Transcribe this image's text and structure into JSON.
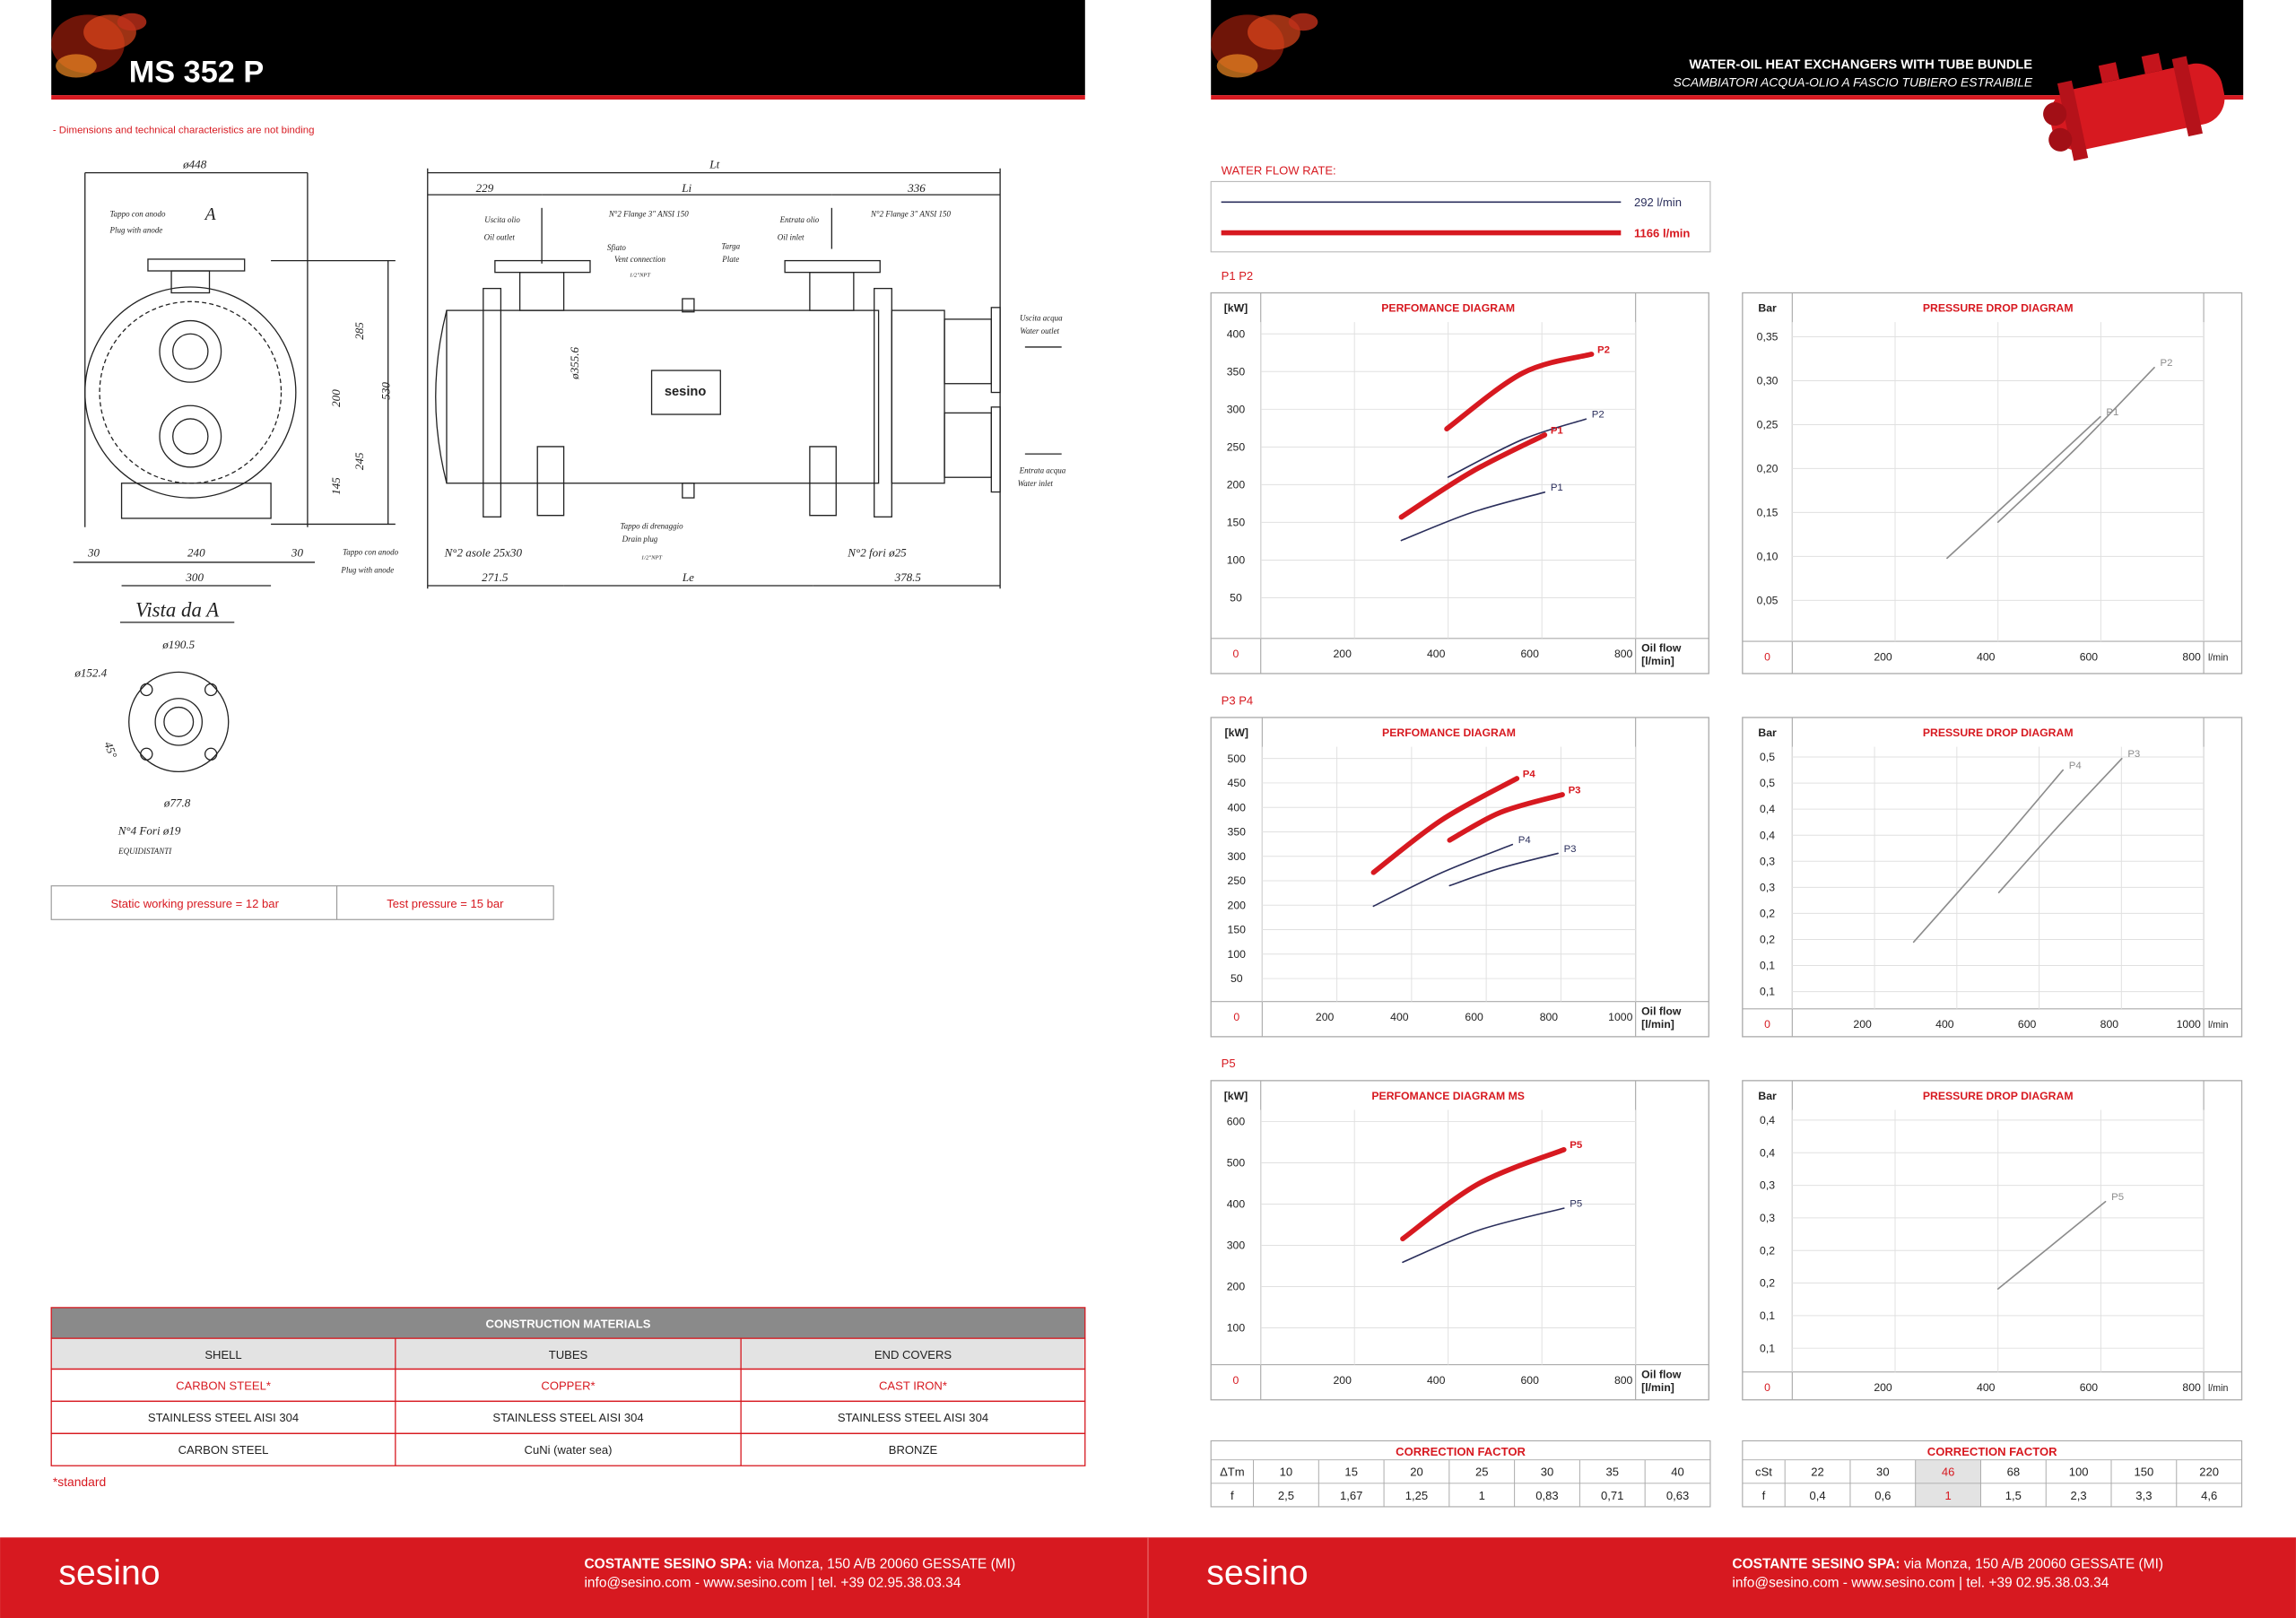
{
  "left_page": {
    "header": {
      "title": "MS 352 P"
    },
    "note": "- Dimensions and technical characteristics are not binding",
    "drawing": {
      "labels": [
        "ø448",
        "Tappo con anodo",
        "Plug with anode",
        "A",
        "285",
        "530",
        "200",
        "245",
        "145",
        "30",
        "240",
        "30",
        "300",
        "Vista da A",
        "ø190.5",
        "ø152.4",
        "45°",
        "ø77.8",
        "N°4 Fori ø19",
        "EQUIDISTANTI",
        "Lt",
        "229",
        "Li",
        "336",
        "Uscita olio",
        "Oil outlet",
        "N°2 Flange 3\" ANSI 150",
        "Sfiato",
        "Vent connection",
        "1/2\"NPT",
        "Targa",
        "Plate",
        "Entrata olio",
        "Oil inlet",
        "N°2 Flange 3\" ANSI 150",
        "ø355.6",
        "Uscita acqua",
        "Water outlet",
        "Entrata acqua",
        "Water inlet",
        "Tappo di drenaggio",
        "Drain plug",
        "1/2\"NPT",
        "Tappo con anodo",
        "Plug with anode",
        "N°2 asole 25x30",
        "N°2 fori ø25",
        "271.5",
        "Le",
        "378.5"
      ]
    },
    "pressure": [
      "Static working pressure = 12 bar",
      "Test pressure = 15 bar"
    ],
    "materials": {
      "title": "CONSTRUCTION MATERIALS",
      "header": [
        "SHELL",
        "TUBES",
        "END COVERS"
      ],
      "rows": [
        [
          "CARBON STEEL*",
          "COPPER*",
          "CAST IRON*"
        ],
        [
          "STAINLESS STEEL AISI 304",
          "STAINLESS STEEL AISI 304",
          "STAINLESS STEEL AISI 304"
        ],
        [
          "CARBON STEEL",
          "CuNi (water sea)",
          "BRONZE"
        ]
      ]
    },
    "footnote": "*standard"
  },
  "right_page": {
    "header": {
      "title": "WATER-OIL HEAT EXCHANGERS WITH TUBE BUNDLE",
      "subtitle": "SCAMBIATORI ACQUA-OLIO A FASCIO TUBIERO ESTRAIBILE"
    },
    "water_flow": {
      "label": "WATER FLOW RATE:",
      "series": [
        {
          "name": "292 l/min",
          "color": "#2b2f5c",
          "line_width": 1
        },
        {
          "name": "1166 l/min",
          "color": "#d71920",
          "line_width": 3.5
        }
      ]
    },
    "sections": [
      {
        "label": "P1  P2",
        "performance": {
          "type": "line",
          "title": "PERFOMANCE DIAGRAM",
          "y_label": "[kW]",
          "x_label": "Oil flow",
          "x_unit": "[l/min]",
          "xlim": [
            0,
            800
          ],
          "ylim": [
            0,
            400
          ],
          "xticks": [
            0,
            200,
            400,
            600,
            800
          ],
          "yticks": [
            50,
            100,
            150,
            200,
            250,
            300,
            350,
            400
          ],
          "series": [
            {
              "name": "P2",
              "color": "#d71920",
              "line_width": 3.5,
              "x": [
                397,
                559,
                706
              ],
              "values": [
                274,
                348,
                373
              ]
            },
            {
              "name": "P2",
              "color": "#2b2f5c",
              "line_width": 1,
              "x": [
                400,
                559,
                694
              ],
              "values": [
                210,
                260,
                287
              ]
            },
            {
              "name": "P1",
              "color": "#d71920",
              "line_width": 3.5,
              "x": [
                300,
                450,
                606
              ],
              "values": [
                157,
                217,
                266
              ]
            },
            {
              "name": "P1",
              "color": "#2b2f5c",
              "line_width": 1,
              "x": [
                300,
                450,
                606
              ],
              "values": [
                126,
                163,
                190
              ]
            }
          ]
        },
        "pressure_drop": {
          "type": "line",
          "title": "PRESSURE DROP DIAGRAM",
          "y_label": "Bar",
          "x_unit": "l/min",
          "xlim": [
            0,
            800
          ],
          "ylim": [
            0,
            0.35
          ],
          "xticks": [
            0,
            200,
            400,
            600,
            800
          ],
          "yticks": [
            {
              "value": 0.05,
              "label": "0,05"
            },
            {
              "value": 0.1,
              "label": "0,10"
            },
            {
              "value": 0.15,
              "label": "0,15"
            },
            {
              "value": 0.2,
              "label": "0,20"
            },
            {
              "value": 0.25,
              "label": "0,25"
            },
            {
              "value": 0.3,
              "label": "0,30"
            },
            {
              "value": 0.35,
              "label": "0,35"
            }
          ],
          "series": [
            {
              "name": "P1",
              "color": "#8c8c8c",
              "line_width": 1,
              "x": [
                301,
                450,
                599
              ],
              "values": [
                0.098,
                0.178,
                0.259
              ]
            },
            {
              "name": "P2",
              "color": "#8c8c8c",
              "line_width": 1,
              "x": [
                400,
                550,
                704
              ],
              "values": [
                0.139,
                0.222,
                0.315
              ]
            }
          ]
        }
      },
      {
        "label": "P3  P4",
        "performance": {
          "type": "line",
          "title": "PERFOMANCE DIAGRAM",
          "y_label": "[kW]",
          "x_label": "Oil flow",
          "x_unit": "[l/min]",
          "xlim": [
            0,
            1000
          ],
          "ylim": [
            0,
            500
          ],
          "xticks": [
            0,
            200,
            400,
            600,
            800,
            1000
          ],
          "yticks": [
            50,
            100,
            150,
            200,
            250,
            300,
            350,
            400,
            450,
            500
          ],
          "series": [
            {
              "name": "P4",
              "color": "#d71920",
              "line_width": 3.5,
              "x": [
                298,
                482,
                682
              ],
              "values": [
                267,
                375,
                459
              ]
            },
            {
              "name": "P4",
              "color": "#2b2f5c",
              "line_width": 1,
              "x": [
                298,
                482,
                670
              ],
              "values": [
                198,
                267,
                324
              ]
            },
            {
              "name": "P3",
              "color": "#d71920",
              "line_width": 3.5,
              "x": [
                502,
                639,
                804
              ],
              "values": [
                333,
                390,
                426
              ]
            },
            {
              "name": "P3",
              "color": "#2b2f5c",
              "line_width": 1,
              "x": [
                502,
                639,
                792
              ],
              "values": [
                240,
                276,
                306
              ]
            }
          ]
        },
        "pressure_drop": {
          "type": "line",
          "title": "PRESSURE DROP DIAGRAM",
          "y_label": "Bar",
          "x_unit": "l/min",
          "xlim": [
            0,
            1000
          ],
          "ylim": [
            0,
            0.5
          ],
          "xticks": [
            0,
            200,
            400,
            600,
            800,
            1000
          ],
          "yticks": [
            {
              "value": 0.05,
              "label": "0,1"
            },
            {
              "value": 0.1,
              "label": "0,1"
            },
            {
              "value": 0.15,
              "label": "0,2"
            },
            {
              "value": 0.2,
              "label": "0,2"
            },
            {
              "value": 0.25,
              "label": "0,3"
            },
            {
              "value": 0.3,
              "label": "0,3"
            },
            {
              "value": 0.35,
              "label": "0,4"
            },
            {
              "value": 0.4,
              "label": "0,4"
            },
            {
              "value": 0.45,
              "label": "0,5"
            },
            {
              "value": 0.5,
              "label": "0,5"
            }
          ],
          "series": [
            {
              "name": "P4",
              "color": "#8c8c8c",
              "line_width": 1,
              "x": [
                295,
                480,
                658
              ],
              "values": [
                0.145,
                0.31,
                0.475
              ]
            },
            {
              "name": "P3",
              "color": "#8c8c8c",
              "line_width": 1,
              "x": [
                502,
                650,
                801
              ],
              "values": [
                0.24,
                0.37,
                0.497
              ]
            }
          ]
        }
      },
      {
        "label": "P5",
        "performance": {
          "type": "line",
          "title": "PERFOMANCE DIAGRAM MS",
          "y_label": "[kW]",
          "x_label": "Oil flow",
          "x_unit": "[l/min]",
          "xlim": [
            0,
            800
          ],
          "ylim": [
            0,
            600
          ],
          "xticks": [
            0,
            200,
            400,
            600,
            800
          ],
          "yticks": [
            100,
            200,
            300,
            400,
            500,
            600
          ],
          "series": [
            {
              "name": "P5",
              "color": "#d71920",
              "line_width": 3.5,
              "x": [
                303,
                466,
                647
              ],
              "values": [
                316,
                450,
                532
              ]
            },
            {
              "name": "P5",
              "color": "#2b2f5c",
              "line_width": 1,
              "x": [
                303,
                466,
                647
              ],
              "values": [
                259,
                337,
                390
              ]
            }
          ]
        },
        "pressure_drop": {
          "type": "line",
          "title": "PRESSURE DROP DIAGRAM",
          "y_label": "Bar",
          "x_unit": "l/min",
          "xlim": [
            0,
            800
          ],
          "ylim": [
            0,
            0.4
          ],
          "xticks": [
            0,
            200,
            400,
            600,
            800
          ],
          "yticks": [
            {
              "value": 0.05,
              "label": "0,1"
            },
            {
              "value": 0.1,
              "label": "0,1"
            },
            {
              "value": 0.15,
              "label": "0,2"
            },
            {
              "value": 0.2,
              "label": "0,2"
            },
            {
              "value": 0.25,
              "label": "0,3"
            },
            {
              "value": 0.3,
              "label": "0,3"
            },
            {
              "value": 0.35,
              "label": "0,4"
            },
            {
              "value": 0.4,
              "label": "0,4"
            }
          ],
          "series": [
            {
              "name": "P5",
              "color": "#8c8c8c",
              "line_width": 1,
              "x": [
                400,
                500,
                609
              ],
              "values": [
                0.141,
                0.205,
                0.275
              ]
            }
          ]
        }
      }
    ],
    "correction": [
      {
        "title": "CORRECTION FACTOR",
        "header": [
          "ΔTm",
          "10",
          "15",
          "20",
          "25",
          "30",
          "35",
          "40"
        ],
        "row": [
          "f",
          "2,5",
          "1,67",
          "1,25",
          "1",
          "0,83",
          "0,71",
          "0,63"
        ]
      },
      {
        "title": "CORRECTION FACTOR",
        "header": [
          "cSt",
          "22",
          "30",
          "46",
          "68",
          "100",
          "150",
          "220"
        ],
        "row": [
          "f",
          "0,4",
          "0,6",
          "1",
          "1,5",
          "2,3",
          "3,3",
          "4,6"
        ],
        "highlight": 3
      }
    ]
  },
  "footer": {
    "logo": "sesino",
    "company": "COSTANTE SESINO SPA:",
    "address": " via Monza, 150 A/B 20060 GESSATE (MI)",
    "contacts": "info@sesino.com - www.sesino.com | tel. +39 02.95.38.03.34"
  }
}
